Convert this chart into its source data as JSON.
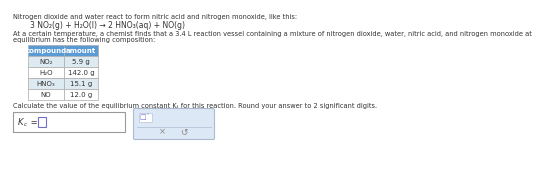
{
  "title_line1": "Nitrogen dioxide and water react to form nitric acid and nitrogen monoxide, like this:",
  "equation": "3 NO₂(g) + H₂O(l) → 2 HNO₃(aq) + NO(g)",
  "body_line1": "At a certain temperature, a chemist finds that a 3.4 L reaction vessel containing a mixture of nitrogen dioxide, water, nitric acid, and nitrogen monoxide at",
  "body_line2": "equilibrium has the following composition:",
  "table_headers": [
    "compound",
    "amount"
  ],
  "table_rows": [
    [
      "NO₂",
      "5.9 g"
    ],
    [
      "H₂O",
      "142.0 g"
    ],
    [
      "HNO₃",
      "15.1 g"
    ],
    [
      "NO",
      "12.0 g"
    ]
  ],
  "calc_text": "Calculate the value of the equilibrium constant Kₜ for this reaction. Round your answer to 2 significant digits.",
  "input_box_color": "#ffffff",
  "input_box_border": "#999999",
  "table_header_bg": "#5b9bd5",
  "table_header_fg": "#ffffff",
  "table_row_bg": "#ffffff",
  "table_alt_bg": "#deeaf1",
  "table_border": "#aaaaaa",
  "bg_color": "#ffffff",
  "text_color": "#333333",
  "font_size_body": 4.8,
  "font_size_equation": 5.5,
  "font_size_table": 5.0,
  "right_panel_bg": "#dce8f5",
  "right_panel_top_bg": "#ffffff",
  "right_panel_border": "#aabbd0",
  "cursor_color": "#7070cc"
}
